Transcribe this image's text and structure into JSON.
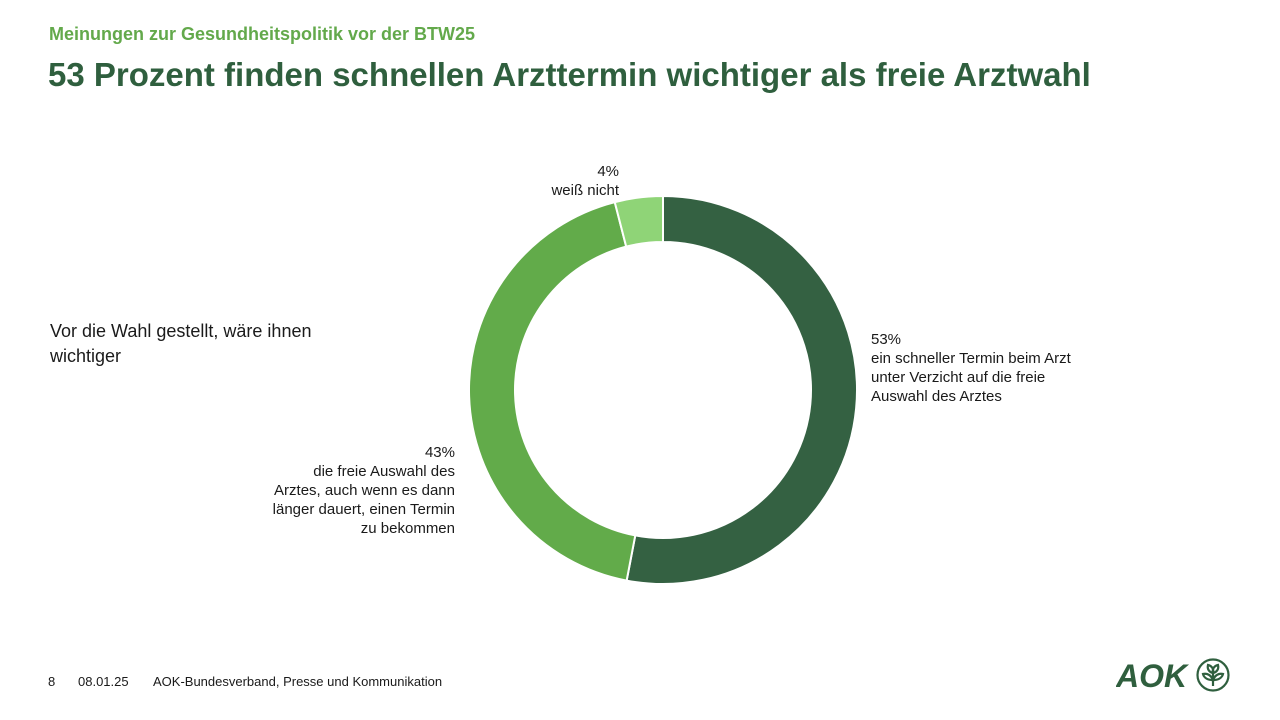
{
  "kicker": "Meinungen zur Gesundheitspolitik vor der BTW25",
  "headline": "53 Prozent finden schnellen Arzttermin wichtiger als freie Arztwahl",
  "question": "Vor die Wahl gestellt, wäre ihnen wichtiger",
  "chart_data": {
    "type": "pie",
    "donut": true,
    "slices": [
      {
        "value": 53,
        "pct_label": "53%",
        "label": "ein schneller Termin beim Arzt\nunter Verzicht auf die freie\nAuswahl des Arztes",
        "color": "#346142"
      },
      {
        "value": 43,
        "pct_label": "43%",
        "label": "die freie Auswahl des\nArztes, auch wenn es dann\nlänger dauert, einen Termin\nzu bekommen",
        "color": "#62ab4a"
      },
      {
        "value": 4,
        "pct_label": "4%",
        "label": "weiß nicht",
        "color": "#8fd477"
      }
    ]
  },
  "footer": {
    "page": "8",
    "date": "08.01.25",
    "source": "AOK-Bundesverband, Presse und Kommunikation"
  },
  "logo": {
    "text": "AOK",
    "color": "#2f5f3e"
  }
}
